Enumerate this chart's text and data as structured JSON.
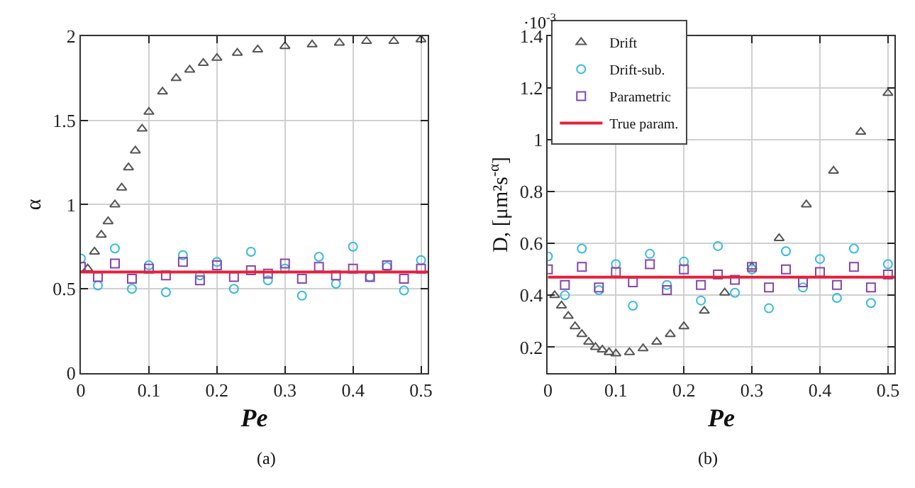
{
  "chart_data": [
    {
      "type": "scatter",
      "xlabel": "Pe",
      "ylabel": "α",
      "xlim": [
        0,
        0.51
      ],
      "xticks": [
        0,
        0.1,
        0.2,
        0.3,
        0.4,
        0.5
      ],
      "ylim": [
        0,
        2
      ],
      "yticks": [
        0,
        0.5,
        1,
        1.5,
        2
      ],
      "grid": true,
      "legend": false,
      "annotations": [
        "(a)"
      ],
      "series": [
        {
          "color": "#555555",
          "marker": "triangle",
          "x": [
            0.01,
            0.02,
            0.03,
            0.04,
            0.05,
            0.06,
            0.07,
            0.08,
            0.09,
            0.1,
            0.12,
            0.14,
            0.16,
            0.18,
            0.2,
            0.23,
            0.26,
            0.3,
            0.34,
            0.38,
            0.42,
            0.46,
            0.5
          ],
          "values": [
            0.62,
            0.72,
            0.82,
            0.9,
            1.0,
            1.1,
            1.22,
            1.32,
            1.45,
            1.55,
            1.67,
            1.75,
            1.8,
            1.84,
            1.87,
            1.9,
            1.92,
            1.94,
            1.95,
            1.96,
            1.97,
            1.97,
            1.98
          ]
        },
        {
          "color": "#33bbdd",
          "marker": "circle",
          "x": [
            0,
            0.025,
            0.05,
            0.075,
            0.1,
            0.125,
            0.15,
            0.175,
            0.2,
            0.225,
            0.25,
            0.275,
            0.3,
            0.325,
            0.35,
            0.375,
            0.4,
            0.425,
            0.45,
            0.475,
            0.5
          ],
          "values": [
            0.68,
            0.52,
            0.74,
            0.5,
            0.64,
            0.48,
            0.7,
            0.58,
            0.66,
            0.5,
            0.72,
            0.55,
            0.62,
            0.46,
            0.69,
            0.53,
            0.75,
            0.57,
            0.63,
            0.49,
            0.67
          ]
        },
        {
          "color": "#8844aa",
          "marker": "square",
          "x": [
            0,
            0.025,
            0.05,
            0.075,
            0.1,
            0.125,
            0.15,
            0.175,
            0.2,
            0.225,
            0.25,
            0.275,
            0.3,
            0.325,
            0.35,
            0.375,
            0.4,
            0.425,
            0.45,
            0.475,
            0.5
          ],
          "values": [
            0.63,
            0.57,
            0.65,
            0.56,
            0.62,
            0.58,
            0.66,
            0.55,
            0.64,
            0.57,
            0.61,
            0.59,
            0.65,
            0.56,
            0.63,
            0.58,
            0.62,
            0.57,
            0.64,
            0.56,
            0.62
          ]
        },
        {
          "color": "#e8203a",
          "type": "line",
          "marker": "none",
          "x": [
            0,
            0.51
          ],
          "values": [
            0.6,
            0.6
          ]
        }
      ]
    },
    {
      "type": "scatter",
      "xlabel": "Pe",
      "ylabel": "D, [μm²s$^{-α}$]",
      "xlim": [
        0,
        0.51
      ],
      "xticks": [
        0,
        0.1,
        0.2,
        0.3,
        0.4,
        0.5
      ],
      "ylim": [
        0.1,
        1.4
      ],
      "yticks": [
        0.2,
        0.4,
        0.6,
        0.8,
        1,
        1.2,
        1.4
      ],
      "grid": true,
      "legend": "top left",
      "annotations": [
        "·10$^{-3}$",
        "(b)"
      ],
      "series": [
        {
          "name": "Drift",
          "color": "#555555",
          "marker": "triangle",
          "x": [
            0.01,
            0.02,
            0.03,
            0.04,
            0.05,
            0.06,
            0.07,
            0.08,
            0.09,
            0.1,
            0.12,
            0.14,
            0.16,
            0.18,
            0.2,
            0.23,
            0.26,
            0.3,
            0.34,
            0.38,
            0.42,
            0.46,
            0.5
          ],
          "values": [
            0.4,
            0.36,
            0.32,
            0.28,
            0.25,
            0.22,
            0.2,
            0.19,
            0.18,
            0.175,
            0.18,
            0.195,
            0.22,
            0.25,
            0.28,
            0.34,
            0.41,
            0.51,
            0.62,
            0.75,
            0.88,
            1.03,
            1.18
          ]
        },
        {
          "name": "Drift-sub.",
          "color": "#33bbdd",
          "marker": "circle",
          "x": [
            0,
            0.025,
            0.05,
            0.075,
            0.1,
            0.125,
            0.15,
            0.175,
            0.2,
            0.225,
            0.25,
            0.275,
            0.3,
            0.325,
            0.35,
            0.375,
            0.4,
            0.425,
            0.45,
            0.475,
            0.5
          ],
          "values": [
            0.55,
            0.4,
            0.58,
            0.42,
            0.52,
            0.36,
            0.56,
            0.44,
            0.53,
            0.38,
            0.59,
            0.41,
            0.5,
            0.35,
            0.57,
            0.43,
            0.54,
            0.39,
            0.58,
            0.37,
            0.52
          ]
        },
        {
          "name": "Parametric",
          "color": "#8844aa",
          "marker": "square",
          "x": [
            0,
            0.025,
            0.05,
            0.075,
            0.1,
            0.125,
            0.15,
            0.175,
            0.2,
            0.225,
            0.25,
            0.275,
            0.3,
            0.325,
            0.35,
            0.375,
            0.4,
            0.425,
            0.45,
            0.475,
            0.5
          ],
          "values": [
            0.5,
            0.44,
            0.51,
            0.43,
            0.49,
            0.45,
            0.52,
            0.42,
            0.5,
            0.44,
            0.48,
            0.46,
            0.51,
            0.43,
            0.5,
            0.45,
            0.49,
            0.44,
            0.51,
            0.43,
            0.48
          ]
        },
        {
          "name": "True param.",
          "color": "#e8203a",
          "type": "line",
          "marker": "none",
          "x": [
            0,
            0.51
          ],
          "values": [
            0.47,
            0.47
          ]
        }
      ]
    }
  ]
}
